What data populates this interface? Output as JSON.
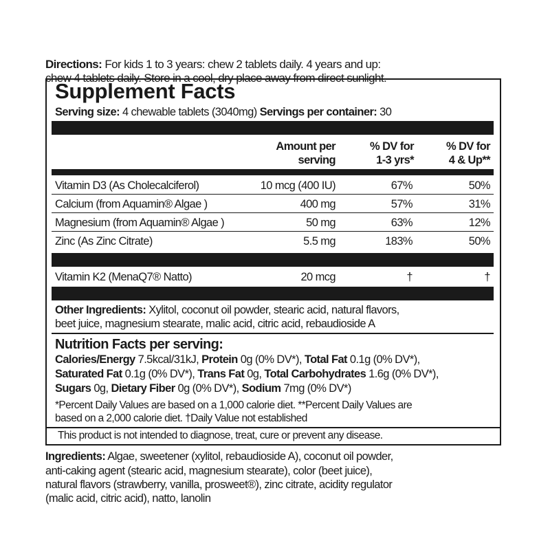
{
  "directions": {
    "label": "Directions:",
    "line1": " For kids 1 to 3 years: chew 2 tablets daily. 4 years and up:",
    "line2": "chew 4 tablets daily. Store in a cool, dry place away from direct sunlight."
  },
  "supplement_facts": {
    "title": "Supplement Facts",
    "serving_size_label": "Serving size:",
    "serving_size_value": " 4 chewable tablets (3040mg) ",
    "servings_label": "Servings per container:",
    "servings_value": " 30",
    "columns": {
      "amount": [
        "Amount per",
        "serving"
      ],
      "dv_kids": [
        "% DV for",
        "1-3 yrs*"
      ],
      "dv_adult": [
        "% DV for",
        "4 & Up**"
      ]
    },
    "rows": [
      {
        "name": "Vitamin D3 (As Cholecalciferol)",
        "amount": "10 mcg (400 IU)",
        "dv_kids": "67%",
        "dv_adult": "50%"
      },
      {
        "name": "Calcium (from Aquamin® Algae )",
        "amount": "400 mg",
        "dv_kids": "57%",
        "dv_adult": "31%"
      },
      {
        "name": "Magnesium (from Aquamin® Algae )",
        "amount": "50 mg",
        "dv_kids": "63%",
        "dv_adult": "12%"
      },
      {
        "name": "Zinc (As Zinc Citrate)",
        "amount": "5.5 mg",
        "dv_kids": "183%",
        "dv_adult": "50%"
      }
    ],
    "other_rows": [
      {
        "name": "Vitamin K2 (MenaQ7® Natto)",
        "amount": "20 mcg",
        "dv_kids": "†",
        "dv_adult": "†"
      }
    ],
    "other_ingredients": {
      "label": "Other Ingredients:",
      "line1": " Xylitol, coconut oil powder, stearic acid, natural flavors,",
      "line2": "beet juice, magnesium stearate, malic acid, citric acid, rebaudioside A"
    },
    "nutrition": {
      "title": "Nutrition Facts per serving:",
      "items": [
        {
          "label": "Calories/Energy",
          "value": " 7.5kcal/31kJ, "
        },
        {
          "label": "Protein",
          "value": " 0g (0% DV*), "
        },
        {
          "label": "Total Fat",
          "value": " 0.1g (0% DV*),"
        },
        {
          "label": "Saturated Fat",
          "value": " 0.1g (0% DV*), "
        },
        {
          "label": "Trans Fat",
          "value": " 0g, "
        },
        {
          "label": "Total Carbohydrates",
          "value": " 1.6g (0% DV*),"
        },
        {
          "label": "Sugars",
          "value": " 0g, "
        },
        {
          "label": "Dietary Fiber",
          "value": " 0g (0% DV*), "
        },
        {
          "label": "Sodium",
          "value": " 7mg (0% DV*)"
        }
      ],
      "footnote1": "*Percent Daily Values are based on a 1,000 calorie diet. **Percent Daily Values are",
      "footnote2": "based on a 2,000 calorie diet. †Daily Value not established"
    },
    "disclaimer": "This product is not intended to diagnose, treat, cure or prevent any disease."
  },
  "ingredients": {
    "label": "Ingredients:",
    "line1": " Algae, sweetener (xylitol, rebaudioside A), coconut oil powder,",
    "line2": "anti-caking agent (stearic acid, magnesium stearate), color (beet juice),",
    "line3": "natural flavors (strawberry, vanilla, prosweet®), zinc citrate, acidity regulator",
    "line4": "(malic acid, citric acid), natto, lanolin"
  }
}
